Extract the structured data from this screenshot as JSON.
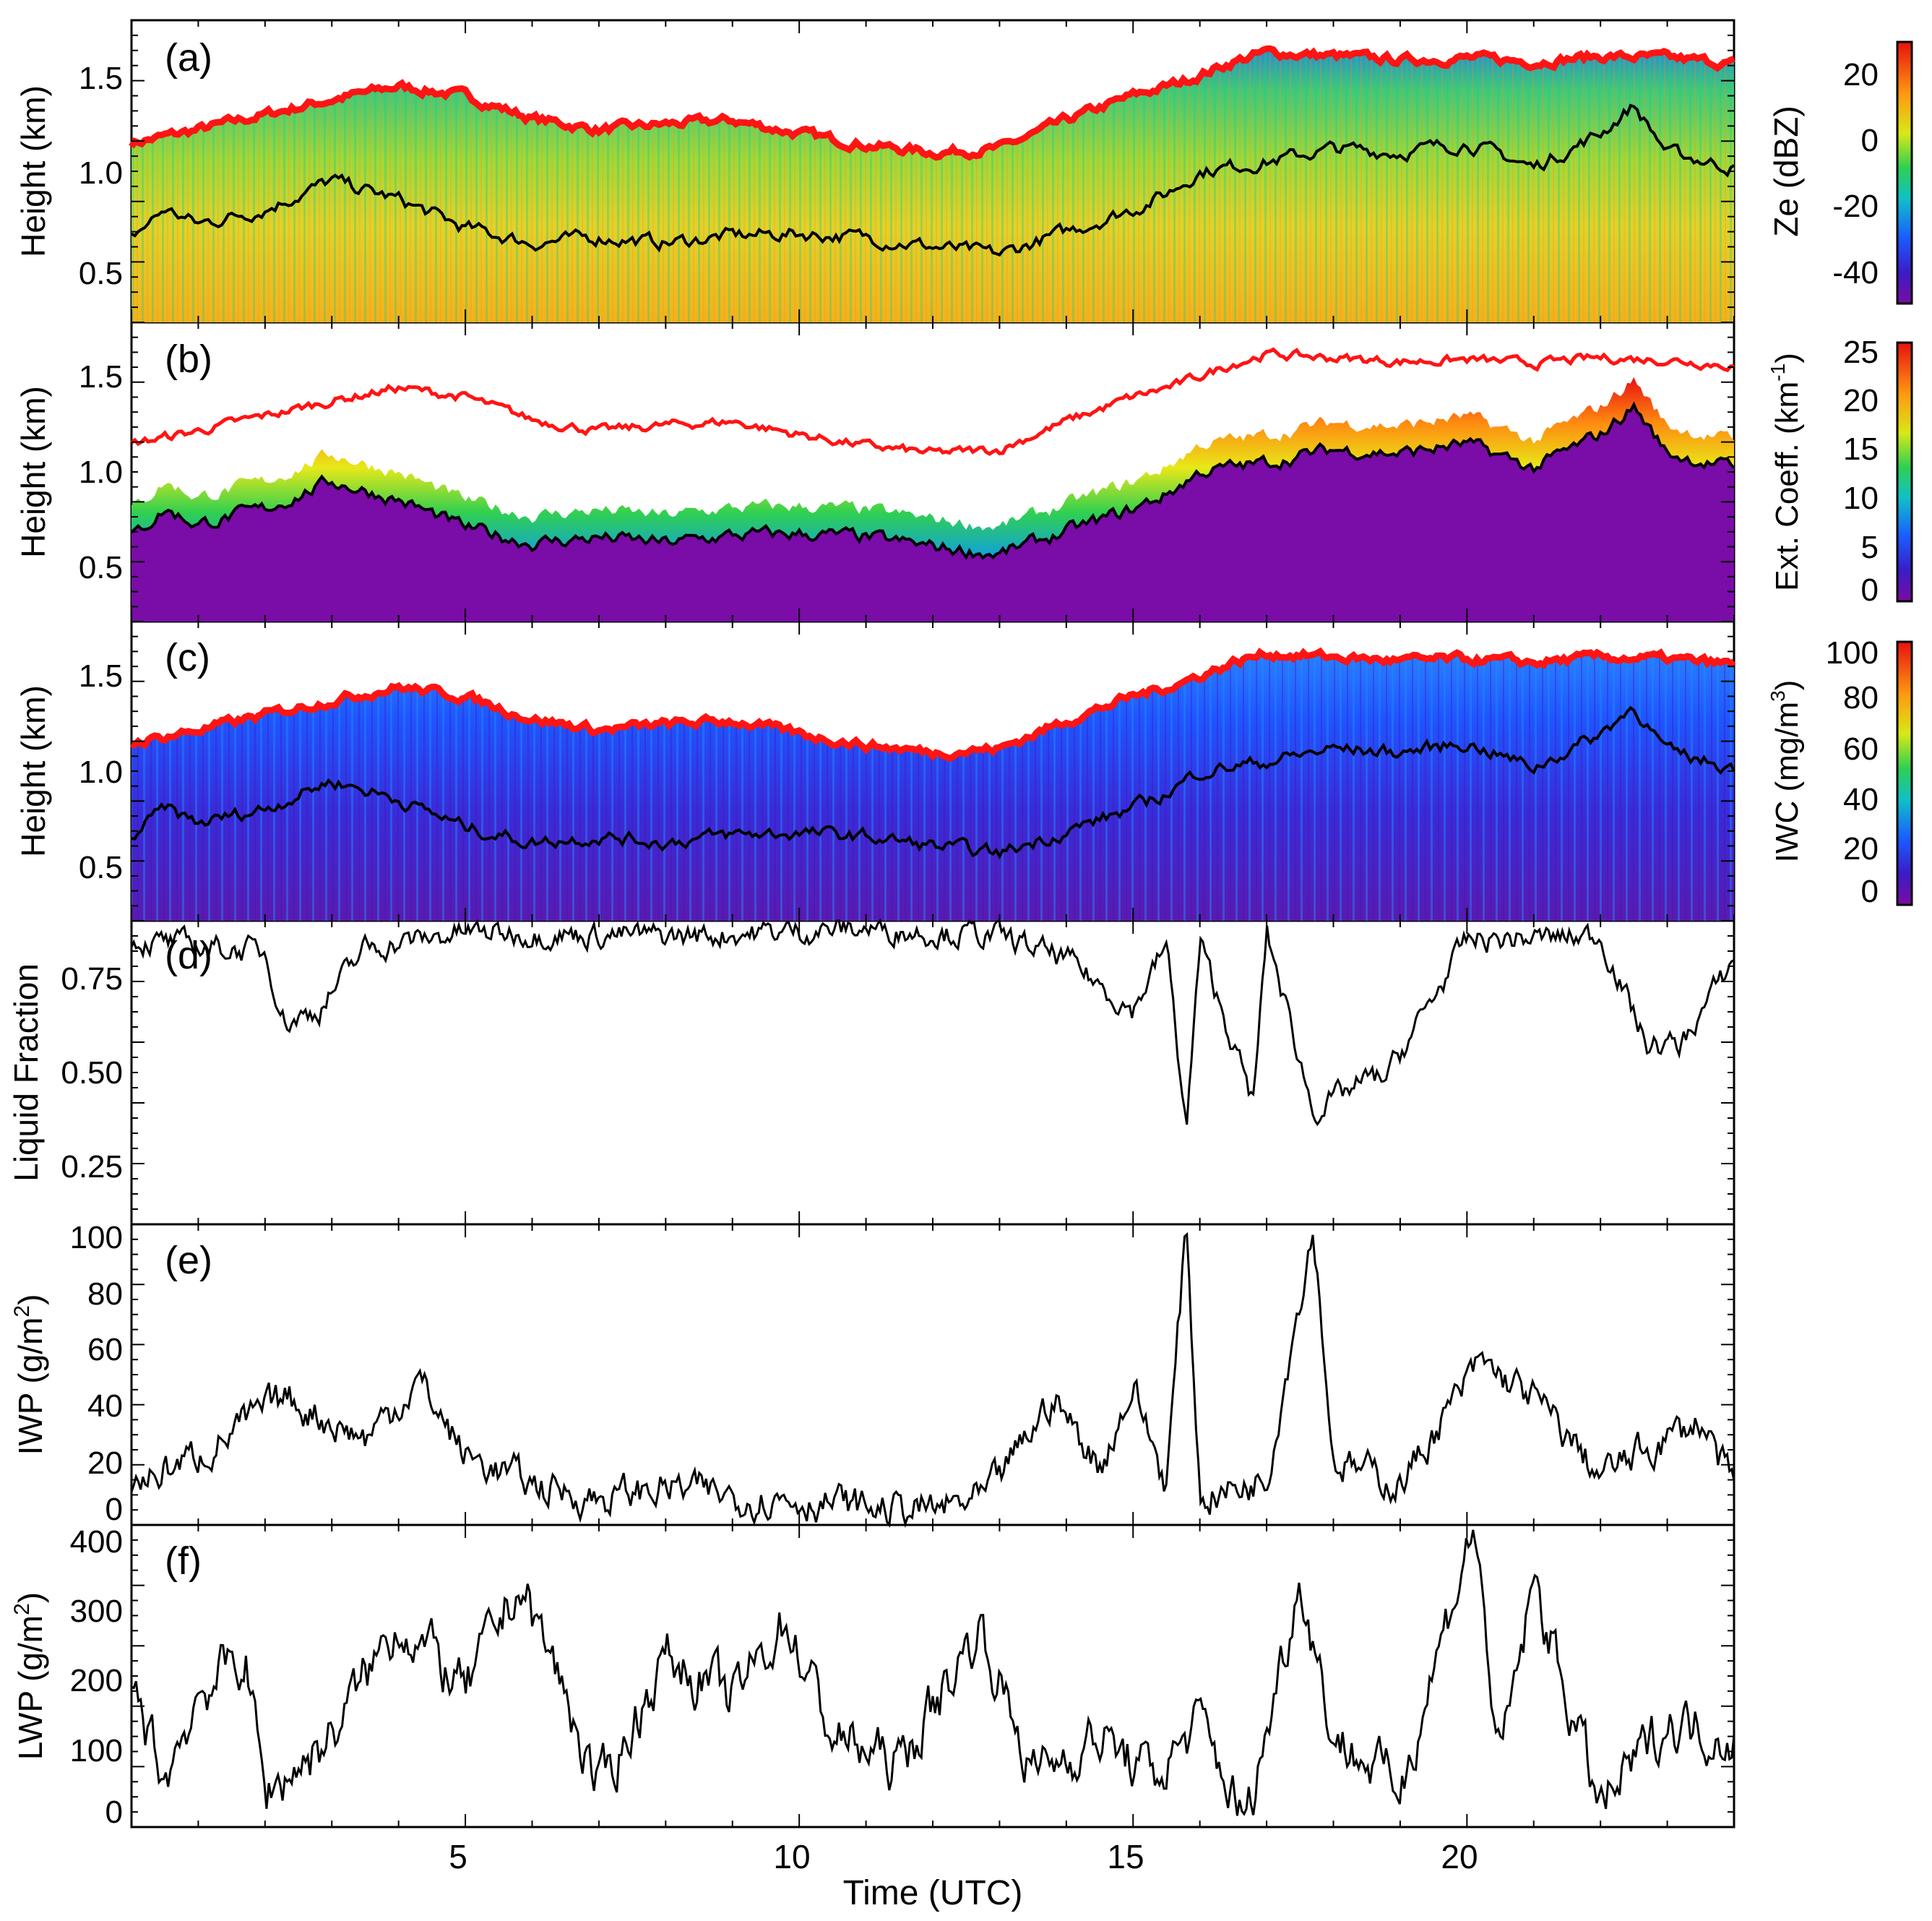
{
  "chart_data": [
    {
      "type": "heatmap",
      "panel_label": "(a)",
      "ylabel": "Height (km)",
      "yticks": [
        "0.5",
        "1.0",
        "1.5"
      ],
      "ylim": [
        0.2,
        1.8
      ],
      "colorbar": {
        "label": "Ze (dBZ)",
        "ticks": [
          "20",
          "0",
          "-20",
          "-40"
        ],
        "range": [
          -50,
          30
        ]
      },
      "field": "Ze",
      "cloud_top_km": [
        [
          0,
          1.15
        ],
        [
          1,
          1.22
        ],
        [
          2,
          1.3
        ],
        [
          3,
          1.38
        ],
        [
          4,
          1.45
        ],
        [
          5,
          1.4
        ],
        [
          6,
          1.28
        ],
        [
          7,
          1.22
        ],
        [
          8,
          1.25
        ],
        [
          9,
          1.27
        ],
        [
          10,
          1.2
        ],
        [
          11,
          1.14
        ],
        [
          12,
          1.1
        ],
        [
          13,
          1.12
        ],
        [
          14,
          1.27
        ],
        [
          15,
          1.4
        ],
        [
          15.7,
          1.47
        ],
        [
          16.5,
          1.58
        ],
        [
          17,
          1.63
        ],
        [
          18,
          1.61
        ],
        [
          19,
          1.59
        ],
        [
          20,
          1.6
        ],
        [
          21,
          1.58
        ],
        [
          22,
          1.61
        ],
        [
          23,
          1.6
        ],
        [
          24,
          1.57
        ]
      ],
      "cloud_base_km": [
        [
          0,
          0.65
        ],
        [
          0.5,
          0.8
        ],
        [
          1,
          0.72
        ],
        [
          2,
          0.8
        ],
        [
          3,
          0.95
        ],
        [
          4,
          0.85
        ],
        [
          5,
          0.7
        ],
        [
          6,
          0.62
        ],
        [
          7,
          0.65
        ],
        [
          8,
          0.62
        ],
        [
          9,
          0.66
        ],
        [
          10,
          0.67
        ],
        [
          11,
          0.65
        ],
        [
          12,
          0.6
        ],
        [
          13,
          0.56
        ],
        [
          14,
          0.68
        ],
        [
          15,
          0.8
        ],
        [
          15.5,
          0.88
        ],
        [
          16,
          1.0
        ],
        [
          17,
          1.05
        ],
        [
          18,
          1.12
        ],
        [
          19,
          1.1
        ],
        [
          20,
          1.15
        ],
        [
          21,
          1.02
        ],
        [
          22,
          1.2
        ],
        [
          22.5,
          1.35
        ],
        [
          23,
          1.1
        ],
        [
          24,
          1.02
        ]
      ]
    },
    {
      "type": "heatmap",
      "panel_label": "(b)",
      "ylabel": "Height (km)",
      "yticks": [
        "0.5",
        "1.0",
        "1.5"
      ],
      "ylim": [
        0.2,
        1.8
      ],
      "colorbar": {
        "label": "Ext. Coeff. (km",
        "label_sup": "-1",
        "label_end": ")",
        "ticks": [
          "25",
          "20",
          "15",
          "10",
          "5",
          "0"
        ],
        "range": [
          0,
          26
        ]
      },
      "field": "extinction"
    },
    {
      "type": "heatmap",
      "panel_label": "(c)",
      "ylabel": "Height (km)",
      "yticks": [
        "0.5",
        "1.0",
        "1.5"
      ],
      "ylim": [
        0.2,
        1.8
      ],
      "colorbar": {
        "label": "IWC (mg/m",
        "label_sup": "3",
        "label_end": ")",
        "ticks": [
          "100",
          "80",
          "60",
          "40",
          "20",
          "0"
        ],
        "range": [
          0,
          100
        ]
      },
      "field": "IWC"
    },
    {
      "type": "line",
      "panel_label": "(d)",
      "ylabel": "Liquid Fraction",
      "yticks": [
        "0.25",
        "0.50",
        "0.75"
      ],
      "ylim": [
        0.1,
        0.88
      ],
      "x_units": "hours UTC",
      "anchors": [
        [
          0,
          0.83
        ],
        [
          2,
          0.8
        ],
        [
          2.3,
          0.62
        ],
        [
          2.8,
          0.65
        ],
        [
          3.5,
          0.81
        ],
        [
          5,
          0.85
        ],
        [
          8,
          0.84
        ],
        [
          11,
          0.86
        ],
        [
          13,
          0.84
        ],
        [
          14,
          0.78
        ],
        [
          15,
          0.65
        ],
        [
          15.5,
          0.82
        ],
        [
          15.8,
          0.34
        ],
        [
          16,
          0.82
        ],
        [
          16.8,
          0.41
        ],
        [
          17,
          0.85
        ],
        [
          17.7,
          0.39
        ],
        [
          18.5,
          0.47
        ],
        [
          18.8,
          0.48
        ],
        [
          20,
          0.83
        ],
        [
          22,
          0.84
        ],
        [
          22.7,
          0.56
        ],
        [
          23.2,
          0.56
        ],
        [
          24,
          0.78
        ]
      ]
    },
    {
      "type": "line",
      "panel_label": "(e)",
      "ylabel": "IWP (g/m",
      "ylabel_sup": "2",
      "ylabel_end": ")",
      "yticks": [
        "0",
        "20",
        "40",
        "60",
        "80",
        "100"
      ],
      "ylim": [
        -2,
        102
      ],
      "x_units": "hours UTC",
      "anchors": [
        [
          0,
          12
        ],
        [
          1,
          22
        ],
        [
          2.3,
          42
        ],
        [
          3.5,
          28
        ],
        [
          4.3,
          48
        ],
        [
          5,
          22
        ],
        [
          6,
          12
        ],
        [
          7,
          7
        ],
        [
          8,
          11
        ],
        [
          9,
          8
        ],
        [
          10,
          7
        ],
        [
          11,
          4
        ],
        [
          12,
          3
        ],
        [
          12.8,
          7
        ],
        [
          13.8,
          42
        ],
        [
          14.5,
          18
        ],
        [
          15,
          46
        ],
        [
          15.5,
          12
        ],
        [
          15.8,
          102
        ],
        [
          16,
          8
        ],
        [
          16.5,
          10
        ],
        [
          17,
          15
        ],
        [
          17.7,
          102
        ],
        [
          18,
          20
        ],
        [
          19,
          12
        ],
        [
          20.2,
          54
        ],
        [
          21,
          42
        ],
        [
          22,
          15
        ],
        [
          23.5,
          34
        ],
        [
          24,
          10
        ]
      ]
    },
    {
      "type": "line",
      "panel_label": "(f)",
      "ylabel": "LWP (g/m",
      "ylabel_sup": "2",
      "ylabel_end": ")",
      "xlabel": "Time (UTC)",
      "xticks": [
        "5",
        "10",
        "15",
        "20"
      ],
      "xlim": [
        0,
        24
      ],
      "yticks": [
        "0",
        "100",
        "200",
        "300",
        "400"
      ],
      "ylim": [
        -5,
        410
      ],
      "x_units": "hours UTC",
      "anchors": [
        [
          0,
          190
        ],
        [
          0.5,
          60
        ],
        [
          1,
          180
        ],
        [
          1.7,
          230
        ],
        [
          2,
          40
        ],
        [
          3,
          120
        ],
        [
          4,
          280
        ],
        [
          5,
          180
        ],
        [
          5.8,
          330
        ],
        [
          6.4,
          200
        ],
        [
          7,
          40
        ],
        [
          8,
          230
        ],
        [
          9,
          170
        ],
        [
          9.8,
          280
        ],
        [
          10.5,
          120
        ],
        [
          11.5,
          80
        ],
        [
          12.7,
          270
        ],
        [
          13.5,
          70
        ],
        [
          14.5,
          120
        ],
        [
          15.3,
          60
        ],
        [
          16,
          140
        ],
        [
          16.7,
          0
        ],
        [
          17.5,
          340
        ],
        [
          18,
          120
        ],
        [
          19,
          50
        ],
        [
          20.1,
          410
        ],
        [
          20.5,
          80
        ],
        [
          21,
          330
        ],
        [
          22,
          20
        ],
        [
          23,
          140
        ],
        [
          24,
          120
        ]
      ]
    }
  ]
}
